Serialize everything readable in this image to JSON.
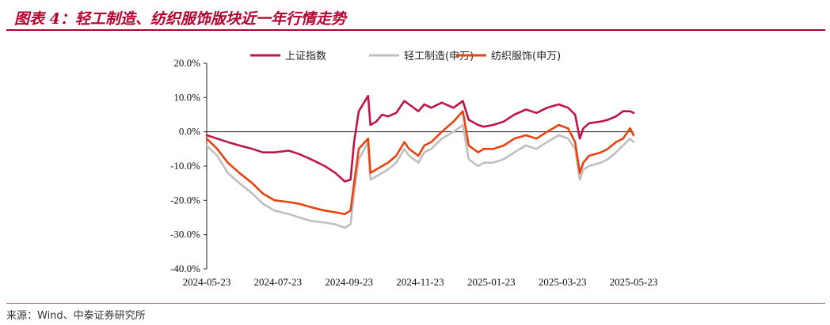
{
  "header": {
    "title": "图表 4：轻工制造、纺织服饰版块近一年行情走势"
  },
  "footer": {
    "source": "来源：Wind、中泰证券研究所"
  },
  "colors": {
    "accent": "#b4002d",
    "sh_index": "#c0134a",
    "light_industry": "#bfbfbf",
    "textile": "#e8430e"
  },
  "chart_data": {
    "type": "line",
    "xlabel": "",
    "ylabel": "",
    "ylim": [
      -40,
      20
    ],
    "yticks": [
      20,
      10,
      0,
      -10,
      -20,
      -30,
      -40
    ],
    "ytick_labels": [
      "20.0%",
      "10.0%",
      "0.0%",
      "-10.0%",
      "-20.0%",
      "-30.0%",
      "-40.0%"
    ],
    "xlim": [
      "2024-05-23",
      "2025-05-23"
    ],
    "xtick_labels": [
      "2024-05-23",
      "2024-07-23",
      "2024-09-23",
      "2024-11-23",
      "2025-01-23",
      "2025-03-23",
      "2025-05-23"
    ],
    "grid": false,
    "zero_line": true,
    "legend": {
      "position": "top",
      "entries": [
        "上证指数",
        "轻工制造(申万)",
        "纺织服饰(申万)"
      ]
    },
    "series": [
      {
        "name": "上证指数",
        "color": "#c0134a",
        "points": [
          [
            "2024-05-23",
            -1
          ],
          [
            "2024-06-01",
            -2
          ],
          [
            "2024-06-10",
            -3
          ],
          [
            "2024-06-20",
            -4
          ],
          [
            "2024-07-01",
            -5
          ],
          [
            "2024-07-10",
            -6
          ],
          [
            "2024-07-20",
            -6
          ],
          [
            "2024-08-01",
            -5.5
          ],
          [
            "2024-08-10",
            -6.5
          ],
          [
            "2024-08-20",
            -8
          ],
          [
            "2024-09-01",
            -10
          ],
          [
            "2024-09-10",
            -12
          ],
          [
            "2024-09-18",
            -14.5
          ],
          [
            "2024-09-23",
            -14
          ],
          [
            "2024-09-26",
            -3
          ],
          [
            "2024-09-30",
            6
          ],
          [
            "2024-10-08",
            10.5
          ],
          [
            "2024-10-10",
            2
          ],
          [
            "2024-10-15",
            3
          ],
          [
            "2024-10-20",
            5
          ],
          [
            "2024-10-25",
            4.5
          ],
          [
            "2024-11-01",
            5.5
          ],
          [
            "2024-11-08",
            9
          ],
          [
            "2024-11-12",
            8
          ],
          [
            "2024-11-20",
            6
          ],
          [
            "2024-11-25",
            8
          ],
          [
            "2024-12-01",
            7
          ],
          [
            "2024-12-10",
            8.5
          ],
          [
            "2024-12-20",
            7
          ],
          [
            "2024-12-28",
            9
          ],
          [
            "2025-01-02",
            3.5
          ],
          [
            "2025-01-10",
            2
          ],
          [
            "2025-01-15",
            1.5
          ],
          [
            "2025-01-23",
            2
          ],
          [
            "2025-02-01",
            3
          ],
          [
            "2025-02-10",
            5
          ],
          [
            "2025-02-20",
            6.5
          ],
          [
            "2025-03-01",
            5.5
          ],
          [
            "2025-03-10",
            7
          ],
          [
            "2025-03-20",
            8
          ],
          [
            "2025-03-28",
            7
          ],
          [
            "2025-04-03",
            5
          ],
          [
            "2025-04-07",
            -2
          ],
          [
            "2025-04-10",
            1
          ],
          [
            "2025-04-15",
            2.5
          ],
          [
            "2025-04-25",
            3
          ],
          [
            "2025-05-01",
            3.5
          ],
          [
            "2025-05-08",
            4.5
          ],
          [
            "2025-05-14",
            6
          ],
          [
            "2025-05-20",
            6
          ],
          [
            "2025-05-23",
            5.5
          ]
        ]
      },
      {
        "name": "轻工制造(申万)",
        "color": "#bfbfbf",
        "points": [
          [
            "2024-05-23",
            -4
          ],
          [
            "2024-06-01",
            -7
          ],
          [
            "2024-06-10",
            -12
          ],
          [
            "2024-06-20",
            -15
          ],
          [
            "2024-07-01",
            -18
          ],
          [
            "2024-07-10",
            -21
          ],
          [
            "2024-07-20",
            -23
          ],
          [
            "2024-08-01",
            -24
          ],
          [
            "2024-08-10",
            -25
          ],
          [
            "2024-08-20",
            -26
          ],
          [
            "2024-09-01",
            -26.5
          ],
          [
            "2024-09-10",
            -27
          ],
          [
            "2024-09-18",
            -28
          ],
          [
            "2024-09-23",
            -27
          ],
          [
            "2024-09-26",
            -18
          ],
          [
            "2024-09-30",
            -8
          ],
          [
            "2024-10-08",
            -3
          ],
          [
            "2024-10-10",
            -14
          ],
          [
            "2024-10-15",
            -13
          ],
          [
            "2024-10-20",
            -12
          ],
          [
            "2024-10-25",
            -11
          ],
          [
            "2024-11-01",
            -9
          ],
          [
            "2024-11-08",
            -5
          ],
          [
            "2024-11-12",
            -7
          ],
          [
            "2024-11-20",
            -9
          ],
          [
            "2024-11-25",
            -6
          ],
          [
            "2024-12-01",
            -5
          ],
          [
            "2024-12-10",
            -2
          ],
          [
            "2024-12-20",
            0
          ],
          [
            "2024-12-28",
            2
          ],
          [
            "2025-01-02",
            -8
          ],
          [
            "2025-01-10",
            -10
          ],
          [
            "2025-01-15",
            -9
          ],
          [
            "2025-01-23",
            -9
          ],
          [
            "2025-02-01",
            -8
          ],
          [
            "2025-02-10",
            -6
          ],
          [
            "2025-02-20",
            -4
          ],
          [
            "2025-03-01",
            -5
          ],
          [
            "2025-03-10",
            -3
          ],
          [
            "2025-03-20",
            -1
          ],
          [
            "2025-03-28",
            -2
          ],
          [
            "2025-04-03",
            -5
          ],
          [
            "2025-04-07",
            -14
          ],
          [
            "2025-04-10",
            -11
          ],
          [
            "2025-04-15",
            -10
          ],
          [
            "2025-04-25",
            -9
          ],
          [
            "2025-05-01",
            -8
          ],
          [
            "2025-05-08",
            -6
          ],
          [
            "2025-05-14",
            -4
          ],
          [
            "2025-05-20",
            -2
          ],
          [
            "2025-05-23",
            -3
          ]
        ]
      },
      {
        "name": "纺织服饰(申万)",
        "color": "#e8430e",
        "points": [
          [
            "2024-05-23",
            -2
          ],
          [
            "2024-06-01",
            -5
          ],
          [
            "2024-06-10",
            -9
          ],
          [
            "2024-06-20",
            -12
          ],
          [
            "2024-07-01",
            -15
          ],
          [
            "2024-07-10",
            -18
          ],
          [
            "2024-07-20",
            -20
          ],
          [
            "2024-08-01",
            -20.5
          ],
          [
            "2024-08-10",
            -21
          ],
          [
            "2024-08-20",
            -22
          ],
          [
            "2024-09-01",
            -23
          ],
          [
            "2024-09-10",
            -23.5
          ],
          [
            "2024-09-18",
            -24
          ],
          [
            "2024-09-23",
            -23
          ],
          [
            "2024-09-26",
            -15
          ],
          [
            "2024-09-30",
            -5
          ],
          [
            "2024-10-08",
            -2
          ],
          [
            "2024-10-10",
            -12
          ],
          [
            "2024-10-15",
            -11
          ],
          [
            "2024-10-20",
            -10
          ],
          [
            "2024-10-25",
            -9
          ],
          [
            "2024-11-01",
            -7
          ],
          [
            "2024-11-08",
            -3
          ],
          [
            "2024-11-12",
            -5
          ],
          [
            "2024-11-20",
            -7
          ],
          [
            "2024-11-25",
            -4
          ],
          [
            "2024-12-01",
            -3
          ],
          [
            "2024-12-10",
            0
          ],
          [
            "2024-12-20",
            3
          ],
          [
            "2024-12-28",
            6
          ],
          [
            "2025-01-02",
            -4
          ],
          [
            "2025-01-10",
            -6
          ],
          [
            "2025-01-15",
            -5
          ],
          [
            "2025-01-23",
            -5
          ],
          [
            "2025-02-01",
            -4
          ],
          [
            "2025-02-10",
            -2
          ],
          [
            "2025-02-20",
            -1
          ],
          [
            "2025-03-01",
            -2
          ],
          [
            "2025-03-10",
            0
          ],
          [
            "2025-03-20",
            2
          ],
          [
            "2025-03-28",
            1
          ],
          [
            "2025-04-03",
            -3
          ],
          [
            "2025-04-07",
            -12
          ],
          [
            "2025-04-10",
            -9
          ],
          [
            "2025-04-15",
            -7
          ],
          [
            "2025-04-25",
            -6
          ],
          [
            "2025-05-01",
            -5
          ],
          [
            "2025-05-08",
            -3
          ],
          [
            "2025-05-14",
            -2
          ],
          [
            "2025-05-20",
            1
          ],
          [
            "2025-05-23",
            -1
          ]
        ]
      }
    ]
  }
}
